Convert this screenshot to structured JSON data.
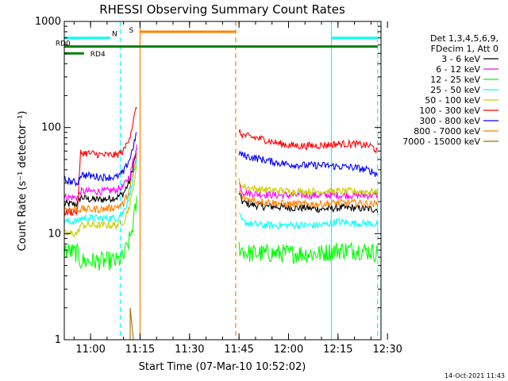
{
  "chart_data": {
    "type": "line",
    "title": "RHESSI Observing Summary Count Rates",
    "xlabel": "Start Time (07-Mar-10 10:52:02)",
    "ylabel": "Count Rate (s⁻¹ detector⁻¹)",
    "yscale": "log",
    "ylim": [
      1,
      1000
    ],
    "xlim_minutes_after_start": [
      0,
      96
    ],
    "x_ticks": [
      "11:00",
      "11:15",
      "11:30",
      "11:45",
      "12:00",
      "12:15",
      "12:30"
    ],
    "y_ticks": [
      "1",
      "10",
      "100",
      "1000"
    ],
    "legend": {
      "placement": "right",
      "header": [
        "Det 1,3,4,5,6,9,",
        "FDecim 1, Att 0"
      ],
      "entries": [
        {
          "label": "3 - 6 keV",
          "color": "#000000"
        },
        {
          "label": "6 - 12 keV",
          "color": "#ff00ff"
        },
        {
          "label": "12 - 25 keV",
          "color": "#00ff00"
        },
        {
          "label": "25 - 50 keV",
          "color": "#00ffff"
        },
        {
          "label": "50 - 100 keV",
          "color": "#cccc00"
        },
        {
          "label": "100 - 300 keV",
          "color": "#ff0000"
        },
        {
          "label": "300 - 800 keV",
          "color": "#0000ff"
        },
        {
          "label": "800 - 7000 keV",
          "color": "#ff8000"
        },
        {
          "label": "7000 - 15000 keV",
          "color": "#a07000"
        }
      ]
    },
    "flags": [
      {
        "label": "S",
        "color": "#ff8000",
        "x_start": "11:15",
        "x_end": "11:44",
        "y": 800
      },
      {
        "label": "N",
        "color": "#00ffff",
        "x_start": "10:52",
        "x_end": "11:06",
        "y": 700
      },
      {
        "label": "",
        "color": "#00ffff",
        "x_start": "12:13",
        "x_end": "12:27",
        "y": 700
      },
      {
        "label": "RD0",
        "color": "#008000",
        "x_start": "10:52",
        "x_end": "12:27",
        "y": 580
      },
      {
        "label": "RD4",
        "color": "#008000",
        "x_start": "10:52",
        "x_end": "10:58",
        "y": 500
      }
    ],
    "vertical_markers": [
      {
        "x": "10:52",
        "color": "#00ffff",
        "style": "solid"
      },
      {
        "x": "11:09",
        "color": "#00ffff",
        "style": "dashed"
      },
      {
        "x": "11:15",
        "color": "#ff8000",
        "style": "solid"
      },
      {
        "x": "11:44",
        "color": "#ff8000",
        "style": "dashed"
      },
      {
        "x": "12:13",
        "color": "#00ffff",
        "style": "solid"
      },
      {
        "x": "12:27",
        "color": "#00ffff",
        "style": "dashed"
      }
    ],
    "series": [
      {
        "name": "3 - 6 keV",
        "color": "#000000",
        "segments": [
          {
            "x": [
              "10:52",
              "10:56",
              "10:57",
              "11:00",
              "11:04",
              "11:08",
              "11:10",
              "11:12",
              "11:13",
              "11:14"
            ],
            "y": [
              19,
              19,
              22,
              21,
              21,
              22,
              24,
              32,
              45,
              62
            ]
          },
          {
            "x": [
              "11:45",
              "11:46",
              "11:48",
              "11:52",
              "11:56",
              "12:00",
              "12:05",
              "12:10",
              "12:15",
              "12:20",
              "12:25",
              "12:27"
            ],
            "y": [
              24,
              20,
              19,
              18,
              18,
              17.5,
              17.5,
              17,
              17.5,
              17.5,
              17,
              17
            ]
          }
        ]
      },
      {
        "name": "6 - 12 keV",
        "color": "#ff00ff",
        "segments": [
          {
            "x": [
              "10:52",
              "10:56",
              "10:57",
              "11:00",
              "11:04",
              "11:08",
              "11:10",
              "11:12",
              "11:13",
              "11:14"
            ],
            "y": [
              22,
              22,
              25,
              25,
              25,
              26,
              28,
              36,
              50,
              68
            ]
          },
          {
            "x": [
              "11:45",
              "11:46",
              "11:48",
              "11:52",
              "11:56",
              "12:00",
              "12:05",
              "12:10",
              "12:15",
              "12:20",
              "12:25",
              "12:27"
            ],
            "y": [
              30,
              25,
              24,
              23.5,
              23,
              23,
              23,
              23,
              23,
              23,
              23,
              23
            ]
          }
        ]
      },
      {
        "name": "12 - 25 keV",
        "color": "#00ff00",
        "segments": [
          {
            "x": [
              "10:52",
              "10:56",
              "10:57",
              "11:00",
              "11:04",
              "11:08",
              "11:10",
              "11:12",
              "11:13",
              "11:14"
            ],
            "y": [
              7,
              6.5,
              5.5,
              5.5,
              5.5,
              5.5,
              6,
              9,
              13,
              20
            ]
          },
          {
            "x": [
              "11:45",
              "11:46",
              "11:48",
              "11:52",
              "11:56",
              "12:00",
              "12:05",
              "12:10",
              "12:15",
              "12:20",
              "12:25",
              "12:27"
            ],
            "y": [
              7.5,
              7,
              6.5,
              6.5,
              6.5,
              6.5,
              6.5,
              6.5,
              7,
              7,
              6.8,
              6.5
            ]
          }
        ]
      },
      {
        "name": "25 - 50 keV",
        "color": "#00ffff",
        "segments": [
          {
            "x": [
              "10:52",
              "10:56",
              "10:57",
              "11:00",
              "11:04",
              "11:08",
              "11:10",
              "11:12",
              "11:13",
              "11:14"
            ],
            "y": [
              13,
              13,
              14,
              14,
              14,
              14,
              16,
              24,
              35,
              50
            ]
          },
          {
            "x": [
              "11:45",
              "11:46",
              "11:48",
              "11:52",
              "11:56",
              "12:00",
              "12:05",
              "12:10",
              "12:15",
              "12:20",
              "12:25",
              "12:27"
            ],
            "y": [
              15,
              13,
              12.5,
              12,
              12,
              12,
              12,
              12,
              13,
              12.5,
              12.5,
              12
            ]
          }
        ]
      },
      {
        "name": "50 - 100 keV",
        "color": "#cccc00",
        "segments": [
          {
            "x": [
              "10:52",
              "10:56",
              "10:57",
              "11:00",
              "11:04",
              "11:08",
              "11:10",
              "11:12",
              "11:13",
              "11:14"
            ],
            "y": [
              10,
              10,
              12,
              12,
              12,
              12,
              13,
              19,
              28,
              42
            ]
          },
          {
            "x": [
              "11:45",
              "11:46",
              "11:48",
              "11:52",
              "11:56",
              "12:00",
              "12:05",
              "12:10",
              "12:15",
              "12:20",
              "12:25",
              "12:27"
            ],
            "y": [
              32,
              28,
              27,
              26,
              25.5,
              25,
              25,
              25,
              25,
              25,
              25,
              24
            ]
          }
        ]
      },
      {
        "name": "100 - 300 keV",
        "color": "#ff0000",
        "segments": [
          {
            "x": [
              "10:52",
              "10:56",
              "10:57",
              "11:00",
              "11:04",
              "11:08",
              "11:10",
              "11:12",
              "11:13",
              "11:14"
            ],
            "y": [
              16,
              16,
              58,
              57,
              55,
              55,
              60,
              85,
              115,
              160
            ]
          },
          {
            "x": [
              "11:45",
              "11:46",
              "11:48",
              "11:52",
              "11:56",
              "12:00",
              "12:05",
              "12:10",
              "12:15",
              "12:20",
              "12:25",
              "12:27"
            ],
            "y": [
              90,
              85,
              82,
              78,
              72,
              68,
              67,
              68,
              70,
              70,
              67,
              60
            ]
          }
        ]
      },
      {
        "name": "300 - 800 keV",
        "color": "#0000ff",
        "segments": [
          {
            "x": [
              "10:52",
              "10:56",
              "10:57",
              "11:00",
              "11:04",
              "11:08",
              "11:10",
              "11:12",
              "11:13",
              "11:14"
            ],
            "y": [
              32,
              30,
              36,
              35,
              34,
              34,
              38,
              52,
              68,
              88
            ]
          },
          {
            "x": [
              "11:45",
              "11:46",
              "11:48",
              "11:52",
              "11:56",
              "12:00",
              "12:05",
              "12:10",
              "12:15",
              "12:20",
              "12:25",
              "12:27"
            ],
            "y": [
              58,
              55,
              53,
              50,
              47,
              45,
              44,
              44,
              43,
              42,
              39,
              36
            ]
          }
        ]
      },
      {
        "name": "800 - 7000 keV",
        "color": "#ff8000",
        "segments": [
          {
            "x": [
              "10:52",
              "10:56",
              "10:57",
              "11:00",
              "11:04",
              "11:08",
              "11:10",
              "11:12",
              "11:13",
              "11:14"
            ],
            "y": [
              17,
              17,
              17,
              17,
              17,
              18,
              19,
              27,
              38,
              55
            ]
          },
          {
            "x": [
              "11:45",
              "11:46",
              "11:48",
              "11:52",
              "11:56",
              "12:00",
              "12:05",
              "12:10",
              "12:15",
              "12:20",
              "12:25",
              "12:27"
            ],
            "y": [
              25,
              22,
              21,
              20,
              19.5,
              19,
              19,
              19,
              19.5,
              19.5,
              19,
              19
            ]
          }
        ]
      },
      {
        "name": "7000 - 15000 keV",
        "color": "#a07000",
        "segments": [
          {
            "x": [
              "11:12",
              "11:12",
              "11:13"
            ],
            "y": [
              1,
              2,
              1
            ]
          }
        ]
      }
    ]
  },
  "timestamp": "14-Oct-2021 11:43"
}
